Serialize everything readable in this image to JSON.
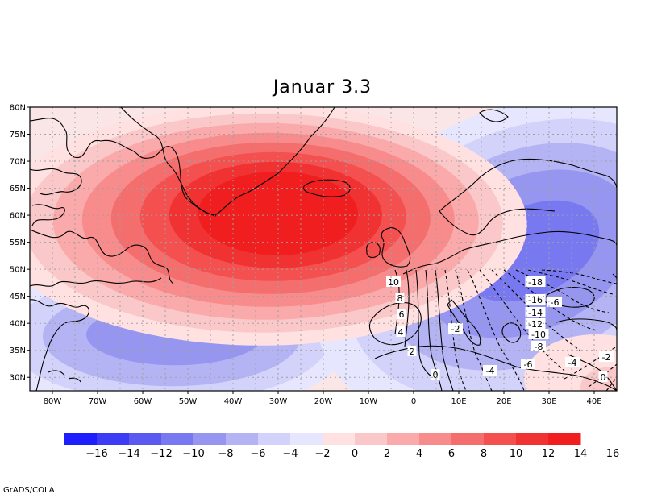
{
  "title": "Januar 3.3",
  "credit": "GrADS/COLA",
  "lat_labels": [
    "80N",
    "75N",
    "70N",
    "65N",
    "60N",
    "55N",
    "50N",
    "45N",
    "40N",
    "35N",
    "30N"
  ],
  "lon_labels": [
    "80W",
    "70W",
    "60W",
    "50W",
    "40W",
    "30W",
    "20W",
    "10W",
    "0",
    "10E",
    "20E",
    "30E",
    "40E"
  ],
  "colorbar": {
    "colors": [
      "#1e1eff",
      "#3c3cf5",
      "#5a5af0",
      "#7878f0",
      "#9696f0",
      "#b4b4f5",
      "#d2d2fa",
      "#e6e6ff",
      "#ffe1e1",
      "#fac8c8",
      "#faaaaa",
      "#f88c8c",
      "#f56e6e",
      "#f55050",
      "#f03232",
      "#f01e1e"
    ],
    "labels": [
      "−16",
      "−14",
      "−12",
      "−10",
      "−8",
      "−6",
      "−4",
      "−2",
      "0",
      "2",
      "4",
      "6",
      "8",
      "10",
      "12",
      "14",
      "16"
    ],
    "shown_labels": [
      "−16",
      "−14",
      "−12",
      "−10",
      "−8",
      "−6",
      "−4",
      "−2",
      "0",
      "2",
      "4",
      "6",
      "8",
      "10",
      "12",
      "14",
      "16"
    ]
  },
  "map_data": {
    "projection": "latlon",
    "lon_range": [
      -85,
      45
    ],
    "lat_range": [
      27.5,
      80
    ],
    "shaded_field": {
      "max_center": {
        "lon": -32,
        "lat": 59,
        "value": 16
      },
      "min_center": {
        "lon": 25,
        "lat": 53,
        "value": -10
      },
      "secondary_min": {
        "lon": -55,
        "lat": 37,
        "value": -6
      }
    },
    "contour_labels": [
      {
        "text": "10"
      },
      {
        "text": "8"
      },
      {
        "text": "6"
      },
      {
        "text": "4"
      },
      {
        "text": "2"
      },
      {
        "text": "0"
      },
      {
        "text": "-2"
      },
      {
        "text": "-4"
      },
      {
        "text": "-6"
      },
      {
        "text": "-8"
      },
      {
        "text": "-10"
      },
      {
        "text": "-12"
      },
      {
        "text": "-14"
      },
      {
        "text": "-16"
      },
      {
        "text": "-18"
      },
      {
        "text": "-6"
      },
      {
        "text": "-4"
      },
      {
        "text": "-2"
      },
      {
        "text": "0"
      }
    ]
  }
}
